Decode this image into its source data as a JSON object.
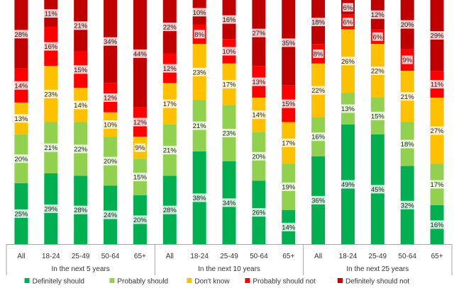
{
  "chart_data": {
    "type": "bar",
    "stacked": true,
    "percent_stacked": true,
    "categories": [
      "All",
      "18-24",
      "25-49",
      "50-64",
      "65+",
      "All",
      "18-24",
      "25-49",
      "50-64",
      "65+",
      "All",
      "18-24",
      "25-49",
      "50-64",
      "65+"
    ],
    "groups": [
      {
        "label": "In the next 5 years",
        "start": 0,
        "count": 5
      },
      {
        "label": "In the next 10 years",
        "start": 5,
        "count": 5
      },
      {
        "label": "In the next 25 years",
        "start": 10,
        "count": 5
      }
    ],
    "series": [
      {
        "name": "Definitely should",
        "color": "#00b050",
        "values": [
          25,
          29,
          28,
          24,
          20,
          28,
          38,
          34,
          26,
          14,
          36,
          49,
          45,
          32,
          16
        ]
      },
      {
        "name": "Probably should",
        "color": "#92d050",
        "values": [
          20,
          21,
          22,
          20,
          15,
          21,
          21,
          23,
          20,
          19,
          16,
          13,
          15,
          18,
          17
        ]
      },
      {
        "name": "Don't know",
        "color": "#ffc000",
        "values": [
          13,
          23,
          14,
          10,
          9,
          17,
          23,
          17,
          14,
          17,
          22,
          26,
          22,
          21,
          27
        ]
      },
      {
        "name": "Probably should not",
        "color": "#ff0000",
        "values": [
          14,
          16,
          15,
          12,
          12,
          12,
          8,
          10,
          13,
          15,
          8,
          6,
          6,
          9,
          11
        ]
      },
      {
        "name": "Definitely should not",
        "color": "#c00000",
        "values": [
          28,
          11,
          21,
          34,
          44,
          22,
          10,
          16,
          27,
          35,
          18,
          6,
          12,
          20,
          29
        ]
      }
    ],
    "value_format": "{v}%",
    "ylim": [
      0,
      100
    ],
    "grid": false,
    "legend": "bottom"
  }
}
